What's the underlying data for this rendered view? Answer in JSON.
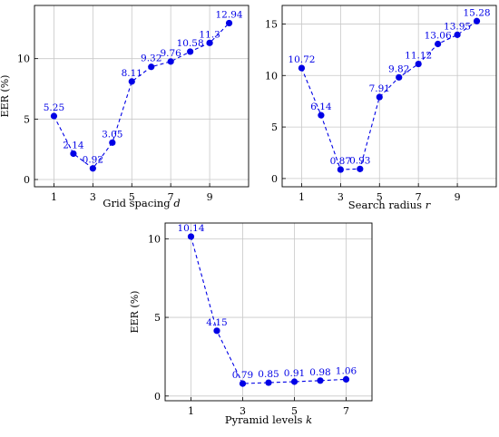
{
  "colors": {
    "series": "#0000e6",
    "grid": "#c8c8c8",
    "axis": "#000000",
    "label": "#0000e6"
  },
  "chart_data": [
    {
      "type": "line",
      "xlabel": "Grid spacing",
      "xlabel_var": "d",
      "ylabel": "EER (%)",
      "x": [
        1,
        2,
        3,
        4,
        5,
        6,
        7,
        8,
        9,
        10
      ],
      "series": [
        {
          "values": [
            5.25,
            2.14,
            0.92,
            3.05,
            8.11,
            9.32,
            9.76,
            10.58,
            11.3,
            12.94
          ],
          "labels": [
            "5.25",
            "2.14",
            "0.92",
            "3.05",
            "8.11",
            "9.32",
            "9.76",
            "10.58",
            "11.3",
            "12.94"
          ]
        }
      ],
      "xticks": [
        1,
        3,
        5,
        7,
        9
      ],
      "yticks": [
        0,
        5,
        10
      ],
      "xlim": [
        0,
        11
      ],
      "ylim": [
        -0.6,
        14.4
      ],
      "grid": true,
      "line_style": "dashed"
    },
    {
      "type": "line",
      "xlabel": "Search radius",
      "xlabel_var": "r",
      "ylabel": "",
      "x": [
        1,
        2,
        3,
        4,
        5,
        6,
        7,
        8,
        9,
        10
      ],
      "series": [
        {
          "values": [
            10.72,
            6.14,
            0.87,
            0.93,
            7.91,
            9.82,
            11.12,
            13.06,
            13.95,
            15.28
          ],
          "labels": [
            "10.72",
            "6.14",
            "0.87",
            "0.93",
            "7.91",
            "9.82",
            "11.12",
            "13.06",
            "13.95",
            "15.28"
          ]
        }
      ],
      "xticks": [
        1,
        3,
        5,
        7,
        9
      ],
      "yticks": [
        0,
        5,
        10,
        15
      ],
      "xlim": [
        0,
        11
      ],
      "ylim": [
        -0.8,
        16.8
      ],
      "grid": true,
      "line_style": "dashed"
    },
    {
      "type": "line",
      "xlabel": "Pyramid levels",
      "xlabel_var": "k",
      "ylabel": "EER (%)",
      "x": [
        1,
        2,
        3,
        4,
        5,
        6,
        7
      ],
      "series": [
        {
          "values": [
            10.14,
            4.15,
            0.79,
            0.85,
            0.91,
            0.98,
            1.06
          ],
          "labels": [
            "10.14",
            "4.15",
            "0.79",
            "0.85",
            "0.91",
            "0.98",
            "1.06"
          ]
        }
      ],
      "xticks": [
        1,
        3,
        5,
        7
      ],
      "yticks": [
        0,
        5,
        10
      ],
      "xlim": [
        0,
        8
      ],
      "ylim": [
        -0.3,
        11.0
      ],
      "grid": true,
      "line_style": "dashed"
    }
  ]
}
